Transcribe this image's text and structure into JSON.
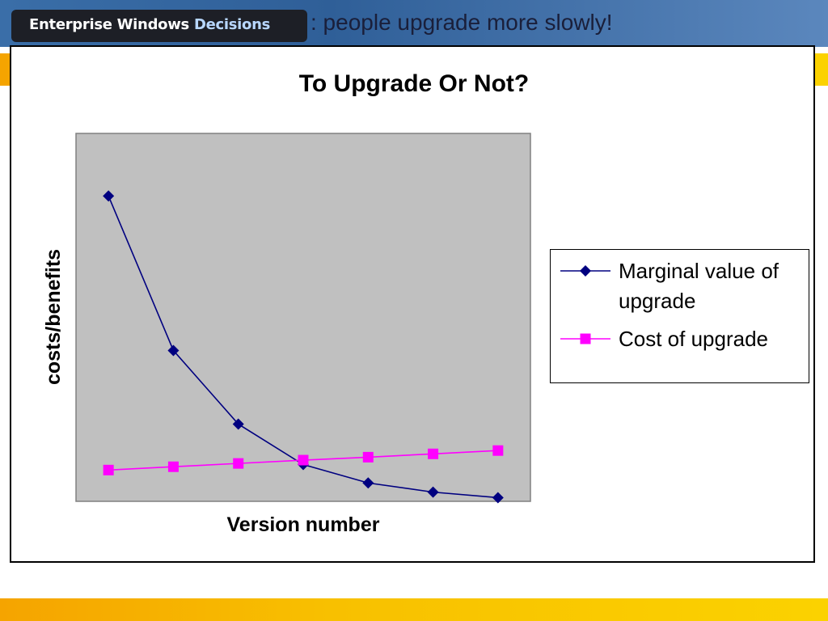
{
  "header": {
    "logo_part1": "Enterprise",
    "logo_part2": "Windows",
    "logo_part3": "Decisions",
    "title_suffix": ":  people upgrade more slowly!"
  },
  "colors": {
    "plot_bg": "#c0c0c0",
    "series1": "#000080",
    "series2": "#ff00ff"
  },
  "chart_data": {
    "type": "line",
    "title": "To Upgrade Or Not?",
    "xlabel": "Version number",
    "ylabel": "costs/benefits",
    "x": [
      1,
      2,
      3,
      4,
      5,
      6,
      7
    ],
    "ylim": [
      0,
      100
    ],
    "grid": false,
    "legend_position": "right",
    "series": [
      {
        "name": "Marginal value of upgrade",
        "marker": "diamond",
        "values": [
          83,
          41,
          21,
          10,
          5,
          2.5,
          1
        ]
      },
      {
        "name": "Cost of upgrade",
        "marker": "square",
        "values": [
          8.5,
          9.4,
          10.3,
          11.2,
          12,
          12.9,
          13.8
        ]
      }
    ]
  }
}
